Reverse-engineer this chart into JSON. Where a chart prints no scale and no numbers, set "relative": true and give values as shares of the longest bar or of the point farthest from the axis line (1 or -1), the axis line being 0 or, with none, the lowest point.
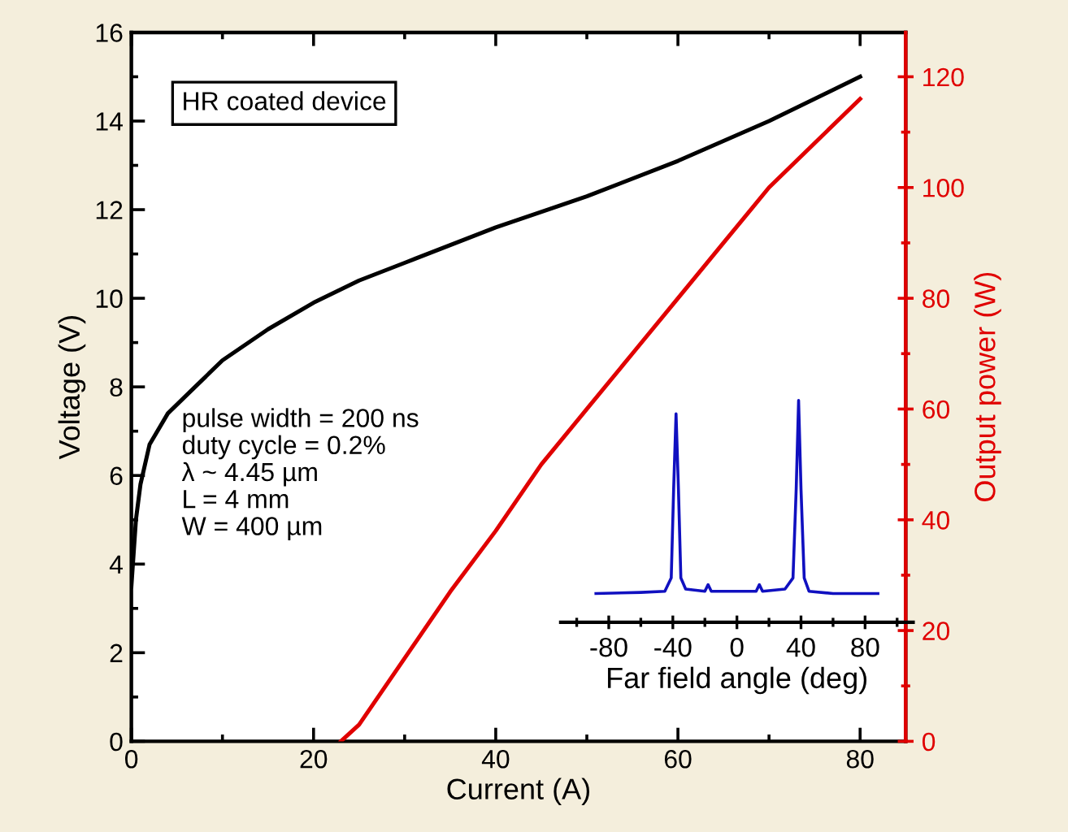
{
  "chart_data": [
    {
      "type": "line",
      "xlabel": "Current (A)",
      "ylabel": "Voltage (V)",
      "y2label": "Output power (W)",
      "xlim": [
        0,
        85
      ],
      "xticks": [
        0,
        20,
        40,
        60,
        80
      ],
      "ylim": [
        0,
        16
      ],
      "yticks": [
        0,
        2,
        4,
        6,
        8,
        10,
        12,
        14,
        16
      ],
      "y2lim": [
        0,
        128
      ],
      "y2ticks": [
        0,
        20,
        40,
        60,
        80,
        100,
        120
      ],
      "legend": false,
      "grid": false,
      "annotations": [
        "HR coated device",
        "pulse width = 200 ns\nduty cycle = 0.2%\nλ ~ 4.45 µm\nL = 4 mm\nW = 400 µm"
      ],
      "series": [
        {
          "color": "#000000",
          "x": [
            0,
            0.5,
            1,
            2,
            4,
            7,
            10,
            15,
            20,
            25,
            30,
            40,
            50,
            60,
            70,
            80
          ],
          "values": [
            3.5,
            5.0,
            5.8,
            6.7,
            7.4,
            8.0,
            8.6,
            9.3,
            9.9,
            10.4,
            10.8,
            11.6,
            12.3,
            13.1,
            14.0,
            15.0
          ]
        },
        {
          "color": "#e00000",
          "axis": "y2",
          "x": [
            23,
            25,
            30,
            35,
            40,
            45,
            50,
            55,
            60,
            65,
            70,
            75,
            80
          ],
          "values": [
            0,
            3,
            15,
            27,
            38,
            50,
            60,
            70,
            80,
            90,
            100,
            108,
            116
          ]
        }
      ]
    },
    {
      "type": "line",
      "relative": true,
      "xlabel": "Far field angle (deg)",
      "xlim": [
        -110,
        110
      ],
      "xticks": [
        -80,
        -40,
        0,
        40,
        80
      ],
      "tick_labels": "x",
      "legend": false,
      "grid": false,
      "series": [
        {
          "color": "#1010c0",
          "x": [
            -88,
            -60,
            -45,
            -41,
            -39.5,
            -38,
            -36.5,
            -35,
            -32,
            -20,
            -18,
            -16,
            0,
            12,
            14,
            16,
            30,
            35,
            37,
            38.5,
            40,
            42,
            45,
            60,
            88
          ],
          "values": [
            0.13,
            0.135,
            0.14,
            0.2,
            0.6,
            0.94,
            0.6,
            0.2,
            0.15,
            0.14,
            0.17,
            0.14,
            0.14,
            0.14,
            0.17,
            0.14,
            0.15,
            0.2,
            0.6,
            1.0,
            0.6,
            0.2,
            0.14,
            0.13,
            0.13
          ]
        }
      ]
    }
  ]
}
